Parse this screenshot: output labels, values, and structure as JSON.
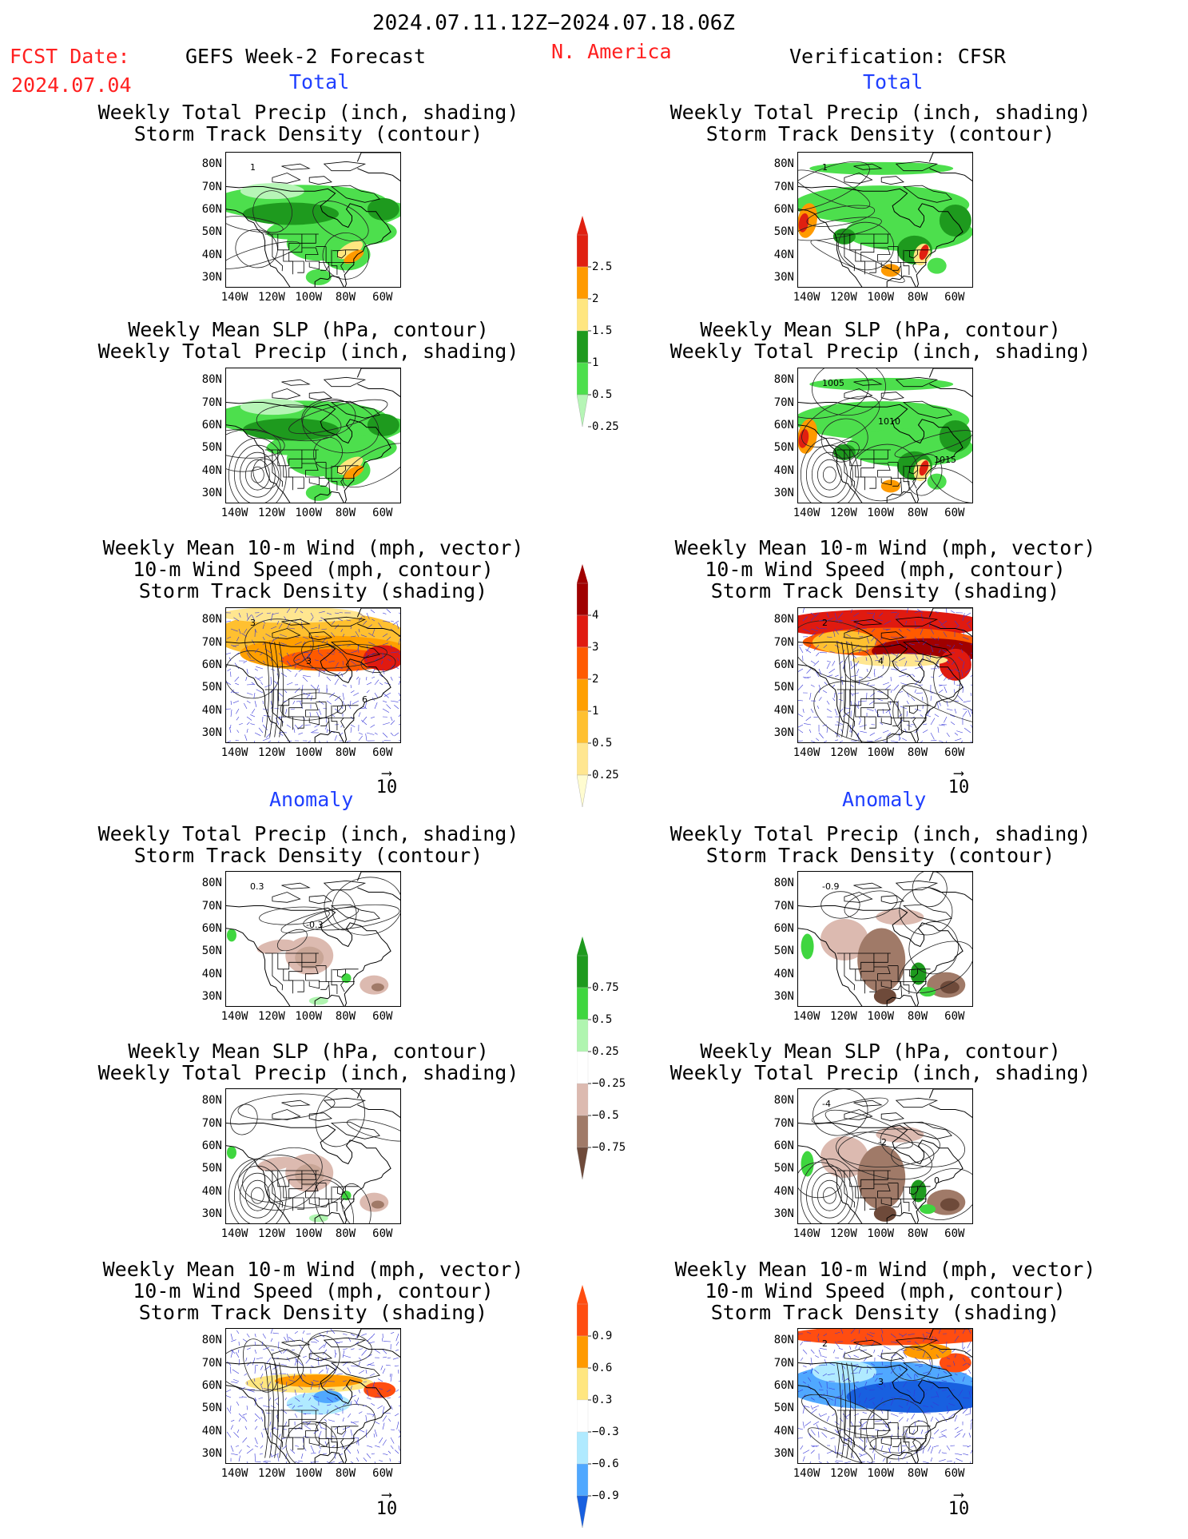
{
  "header": {
    "date_range": "2024.07.11.12Z−2024.07.18.06Z",
    "fcst_label": "FCST Date:",
    "fcst_date": "2024.07.04",
    "left_title": "GEFS Week-2 Forecast",
    "region": "N. America",
    "right_title": "Verification: CFSR"
  },
  "sections": {
    "total": "Total",
    "anomaly": "Anomaly"
  },
  "titles": {
    "precip_track": [
      "Weekly Total Precip (inch, shading)",
      "Storm Track Density (contour)"
    ],
    "slp_precip": [
      "Weekly Mean SLP (hPa, contour)",
      "Weekly Total Precip (inch, shading)"
    ],
    "wind_track": [
      "Weekly Mean 10-m Wind (mph, vector)",
      "10-m Wind Speed (mph, contour)",
      "Storm Track Density (shading)"
    ]
  },
  "axes": {
    "lat": [
      "80N",
      "70N",
      "60N",
      "50N",
      "40N",
      "30N"
    ],
    "lon": [
      "140W",
      "120W",
      "100W",
      "80W",
      "60W"
    ]
  },
  "vector_scale": "10",
  "contour_labels": {
    "fc_precip_track": "1",
    "cf_precip_track": "1",
    "cf_slp_1005": "1005",
    "cf_slp_1010": "1010",
    "cf_slp_1015": "1015",
    "fc_wind_3a": "3",
    "fc_wind_3b": "3",
    "fc_wind_6": "6",
    "cf_wind_2": "2",
    "cf_wind_4": "4",
    "fc_anom_03": "0.3",
    "fc_anom_m03": "-0.3",
    "cf_anom_m09": "-0.9",
    "cf_anom_slp_4": "-4",
    "cf_anom_slp_2": "-2",
    "cf_anom_slp_0": "0",
    "cf_anom_wind_2": "2",
    "cf_anom_wind_3": "3"
  },
  "colorbars": {
    "precip_total": {
      "labels": [
        "2.5",
        "2",
        "1.5",
        "1",
        "0.5",
        "0.25"
      ],
      "colors": [
        "#e02010",
        "#ff9a00",
        "#ffe680",
        "#1e9a1e",
        "#4ddf4d",
        "#b6f5b6"
      ]
    },
    "storm_total": {
      "labels": [
        "4",
        "3",
        "2",
        "1",
        "0.5",
        "0.25"
      ],
      "colors": [
        "#a00000",
        "#e01a10",
        "#ff5a00",
        "#ff9f00",
        "#ffc030",
        "#ffe690",
        "#fffcd0"
      ]
    },
    "precip_anom": {
      "labels": [
        "0.75",
        "0.5",
        "0.25",
        "−0.25",
        "−0.5",
        "−0.75"
      ],
      "colors": [
        "#1e9a1e",
        "#3fd63f",
        "#b0f5b0",
        "#ffffff",
        "#dcbab0",
        "#a07a68",
        "#6e4a3a"
      ]
    },
    "storm_anom": {
      "labels": [
        "0.9",
        "0.6",
        "0.3",
        "−0.3",
        "−0.6",
        "−0.9"
      ],
      "colors": [
        "#ff4d10",
        "#ff9a00",
        "#ffe680",
        "#ffffff",
        "#b0eaff",
        "#50a8ff",
        "#1860e0"
      ]
    }
  }
}
